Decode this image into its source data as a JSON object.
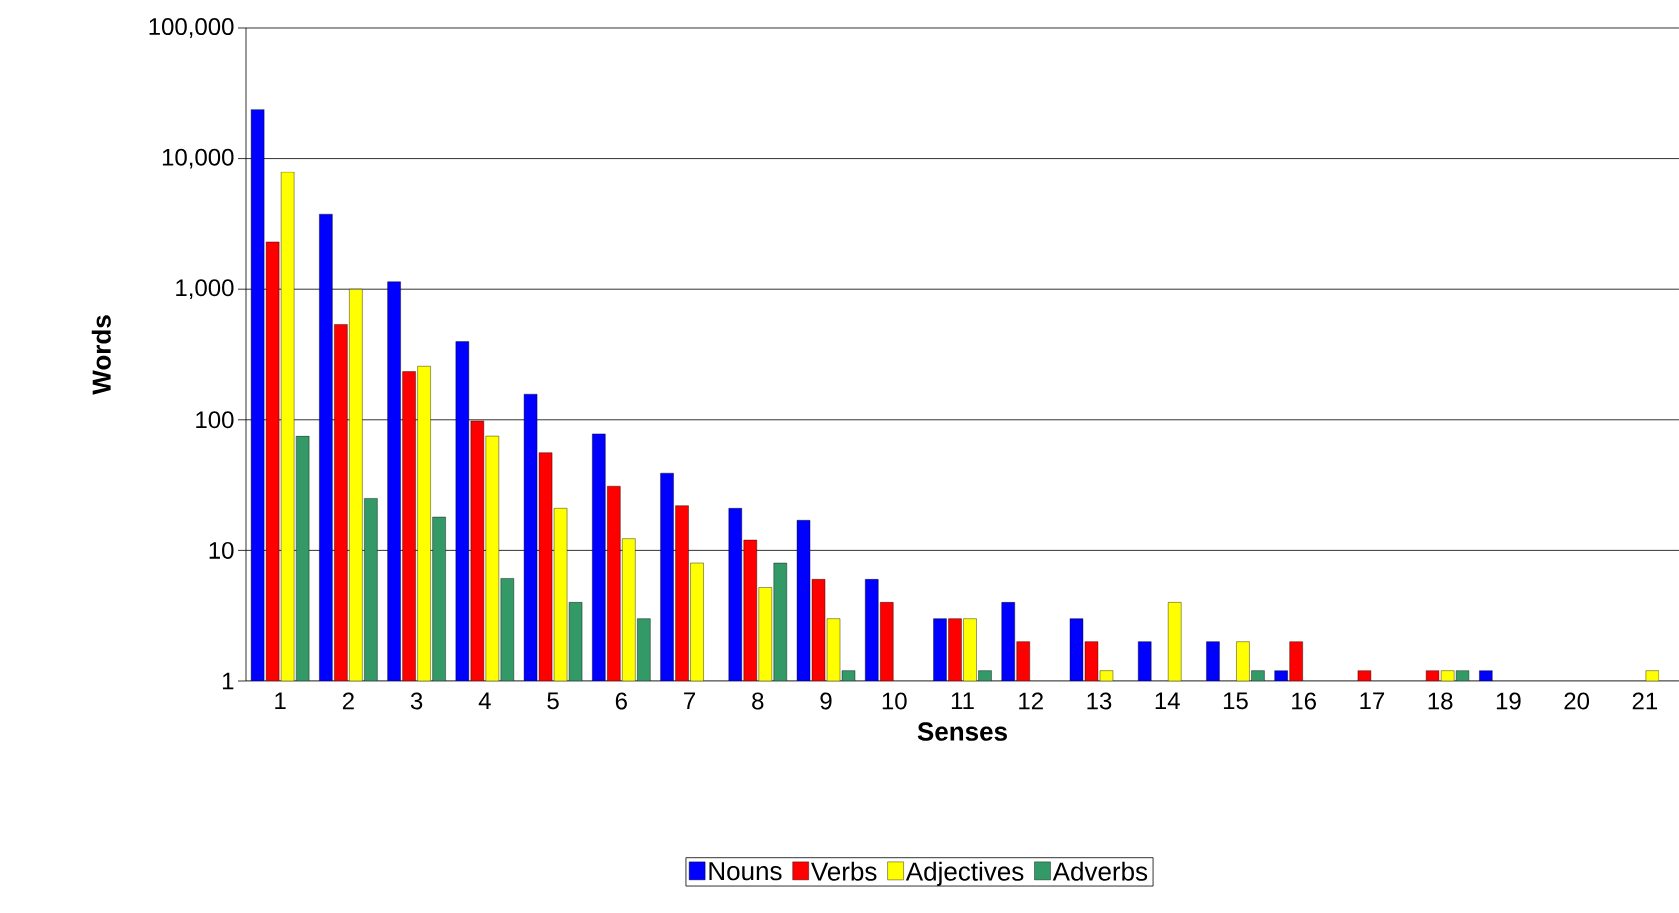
{
  "chart_data": {
    "type": "bar",
    "xlabel": "Senses",
    "ylabel": "Words",
    "categories": [
      "1",
      "2",
      "3",
      "4",
      "5",
      "6",
      "7",
      "8",
      "9",
      "10",
      "11",
      "12",
      "13",
      "14",
      "15",
      "16",
      "17",
      "18",
      "19",
      "20",
      "21"
    ],
    "series": [
      {
        "name": "Nouns",
        "color": "#0000ff",
        "values": [
          23800,
          3750,
          1140,
          397,
          157,
          78,
          39,
          21,
          17,
          6,
          3,
          4,
          3,
          2,
          2,
          1.2,
          null,
          null,
          1.2,
          null,
          null
        ]
      },
      {
        "name": "Verbs",
        "color": "#ff0000",
        "values": [
          2300,
          537,
          234,
          98,
          56,
          31,
          22,
          12,
          6,
          4,
          3,
          2,
          2,
          null,
          null,
          2,
          1.2,
          1.2,
          null,
          null,
          null
        ]
      },
      {
        "name": "Adjectives",
        "color": "#ffff00",
        "values": [
          7900,
          1000,
          257,
          75,
          21,
          12.3,
          8,
          5.2,
          3,
          null,
          3,
          null,
          1.2,
          4,
          2,
          null,
          null,
          1.2,
          null,
          null,
          1.2
        ]
      },
      {
        "name": "Adverbs",
        "color": "#339966",
        "values": [
          75,
          25,
          18,
          6.1,
          4,
          3,
          null,
          8,
          1.2,
          null,
          1.2,
          null,
          null,
          null,
          1.2,
          null,
          null,
          1.2,
          null,
          null,
          null
        ]
      }
    ],
    "log": "y",
    "ylim": [
      1,
      100000
    ],
    "yticks": [
      1,
      10,
      100,
      {
        "value": 1000,
        "label": "1,000"
      },
      {
        "value": 10000,
        "label": "10,000"
      },
      {
        "value": 100000,
        "label": "100,000"
      }
    ],
    "grid": "y",
    "legend": "bottom"
  }
}
